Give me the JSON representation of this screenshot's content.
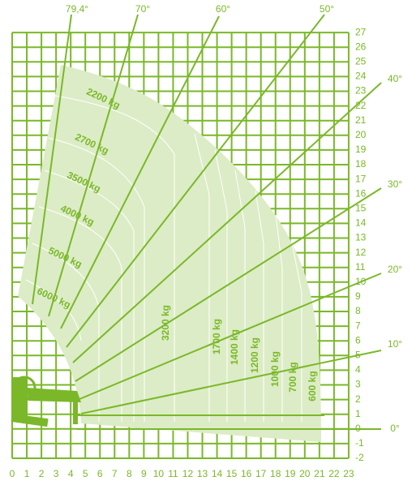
{
  "x_axis": {
    "ticks": [
      0,
      1,
      2,
      3,
      4,
      5,
      6,
      7,
      8,
      9,
      10,
      11,
      12,
      13,
      14,
      15,
      16,
      17,
      18,
      19,
      20,
      21,
      22,
      23
    ]
  },
  "y_axis": {
    "ticks": [
      27,
      26,
      25,
      24,
      23,
      22,
      21,
      20,
      19,
      18,
      17,
      16,
      15,
      14,
      13,
      12,
      11,
      10,
      9,
      8,
      7,
      6,
      5,
      4,
      3,
      2,
      1,
      0,
      -1,
      -2
    ]
  },
  "angles": [
    "79,4°",
    "70°",
    "60°",
    "50°",
    "40°",
    "30°",
    "20°",
    "10°",
    "0°"
  ],
  "loads": [
    "2200 kg",
    "2700 kg",
    "3500 kg",
    "4000 kg",
    "5000 kg",
    "6000 kg",
    "3200 kg",
    "1700 kg",
    "1400 kg",
    "1200 kg",
    "1000 kg",
    "700 kg",
    "600 kg"
  ]
}
